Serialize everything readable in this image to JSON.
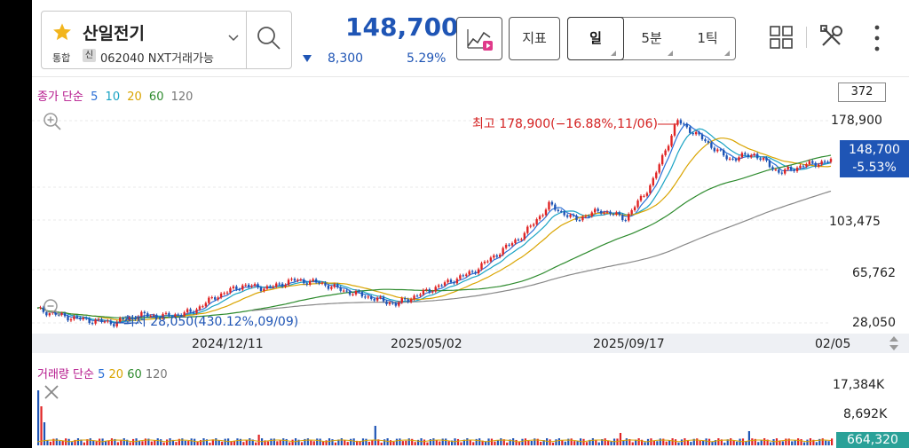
{
  "stock": {
    "name": "산일전기",
    "market": "통합",
    "credit_badge": "신",
    "code_line": "062040 NXT거래가능",
    "price": "148,700",
    "change": "8,300",
    "change_pct": "5.29%",
    "direction": "down",
    "down_color": "#1f55b5",
    "up_color": "#d42020"
  },
  "toolbar": {
    "chart_indicator_icon": "chart-indicator-icon",
    "indicator_label": "지표",
    "periods": [
      {
        "label": "일",
        "selected": true
      },
      {
        "label": "5분",
        "selected": false
      },
      {
        "label": "1틱",
        "selected": false
      }
    ],
    "icons": [
      "grid-icon",
      "tools-icon",
      "more-icon"
    ]
  },
  "price_chart": {
    "legend_label": "종가 단순",
    "ma_periods": [
      "5",
      "10",
      "20",
      "60",
      "120"
    ],
    "count": "372",
    "y_labels": [
      "178,900",
      "103,475",
      "65,762",
      "28,050"
    ],
    "current_price": "148,700",
    "current_pct": "-5.53%",
    "high_annotation": "최고 178,900(−16.88%,11/06)",
    "low_annotation": "최저 28,050(430.12%,09/09)",
    "x_labels": [
      "2024/12/11",
      "2025/05/02",
      "2025/09/17",
      "02/05"
    ]
  },
  "volume_chart": {
    "legend_label": "거래량 단순",
    "ma_periods": [
      "5",
      "20",
      "60",
      "120"
    ],
    "y_labels": [
      "17,384K",
      "8,692K"
    ],
    "current_volume": "664,320"
  },
  "chart_data": {
    "type": "line",
    "series": [
      {
        "values": [
          38000,
          33000,
          30000,
          28050,
          34000,
          33000,
          36000,
          48000,
          56000,
          54000,
          60000,
          58000,
          52000,
          47000,
          42000,
          50000,
          58000,
          66000,
          80000,
          94000,
          116000,
          105000,
          112000,
          106000,
          132000,
          178900,
          165000,
          150000,
          154000,
          140000,
          146000,
          148700
        ]
      }
    ],
    "ylim": [
      28050,
      178900
    ],
    "x_ticks": [
      "2024/12/11",
      "2025/05/02",
      "2025/09/17",
      "02/05"
    ]
  }
}
